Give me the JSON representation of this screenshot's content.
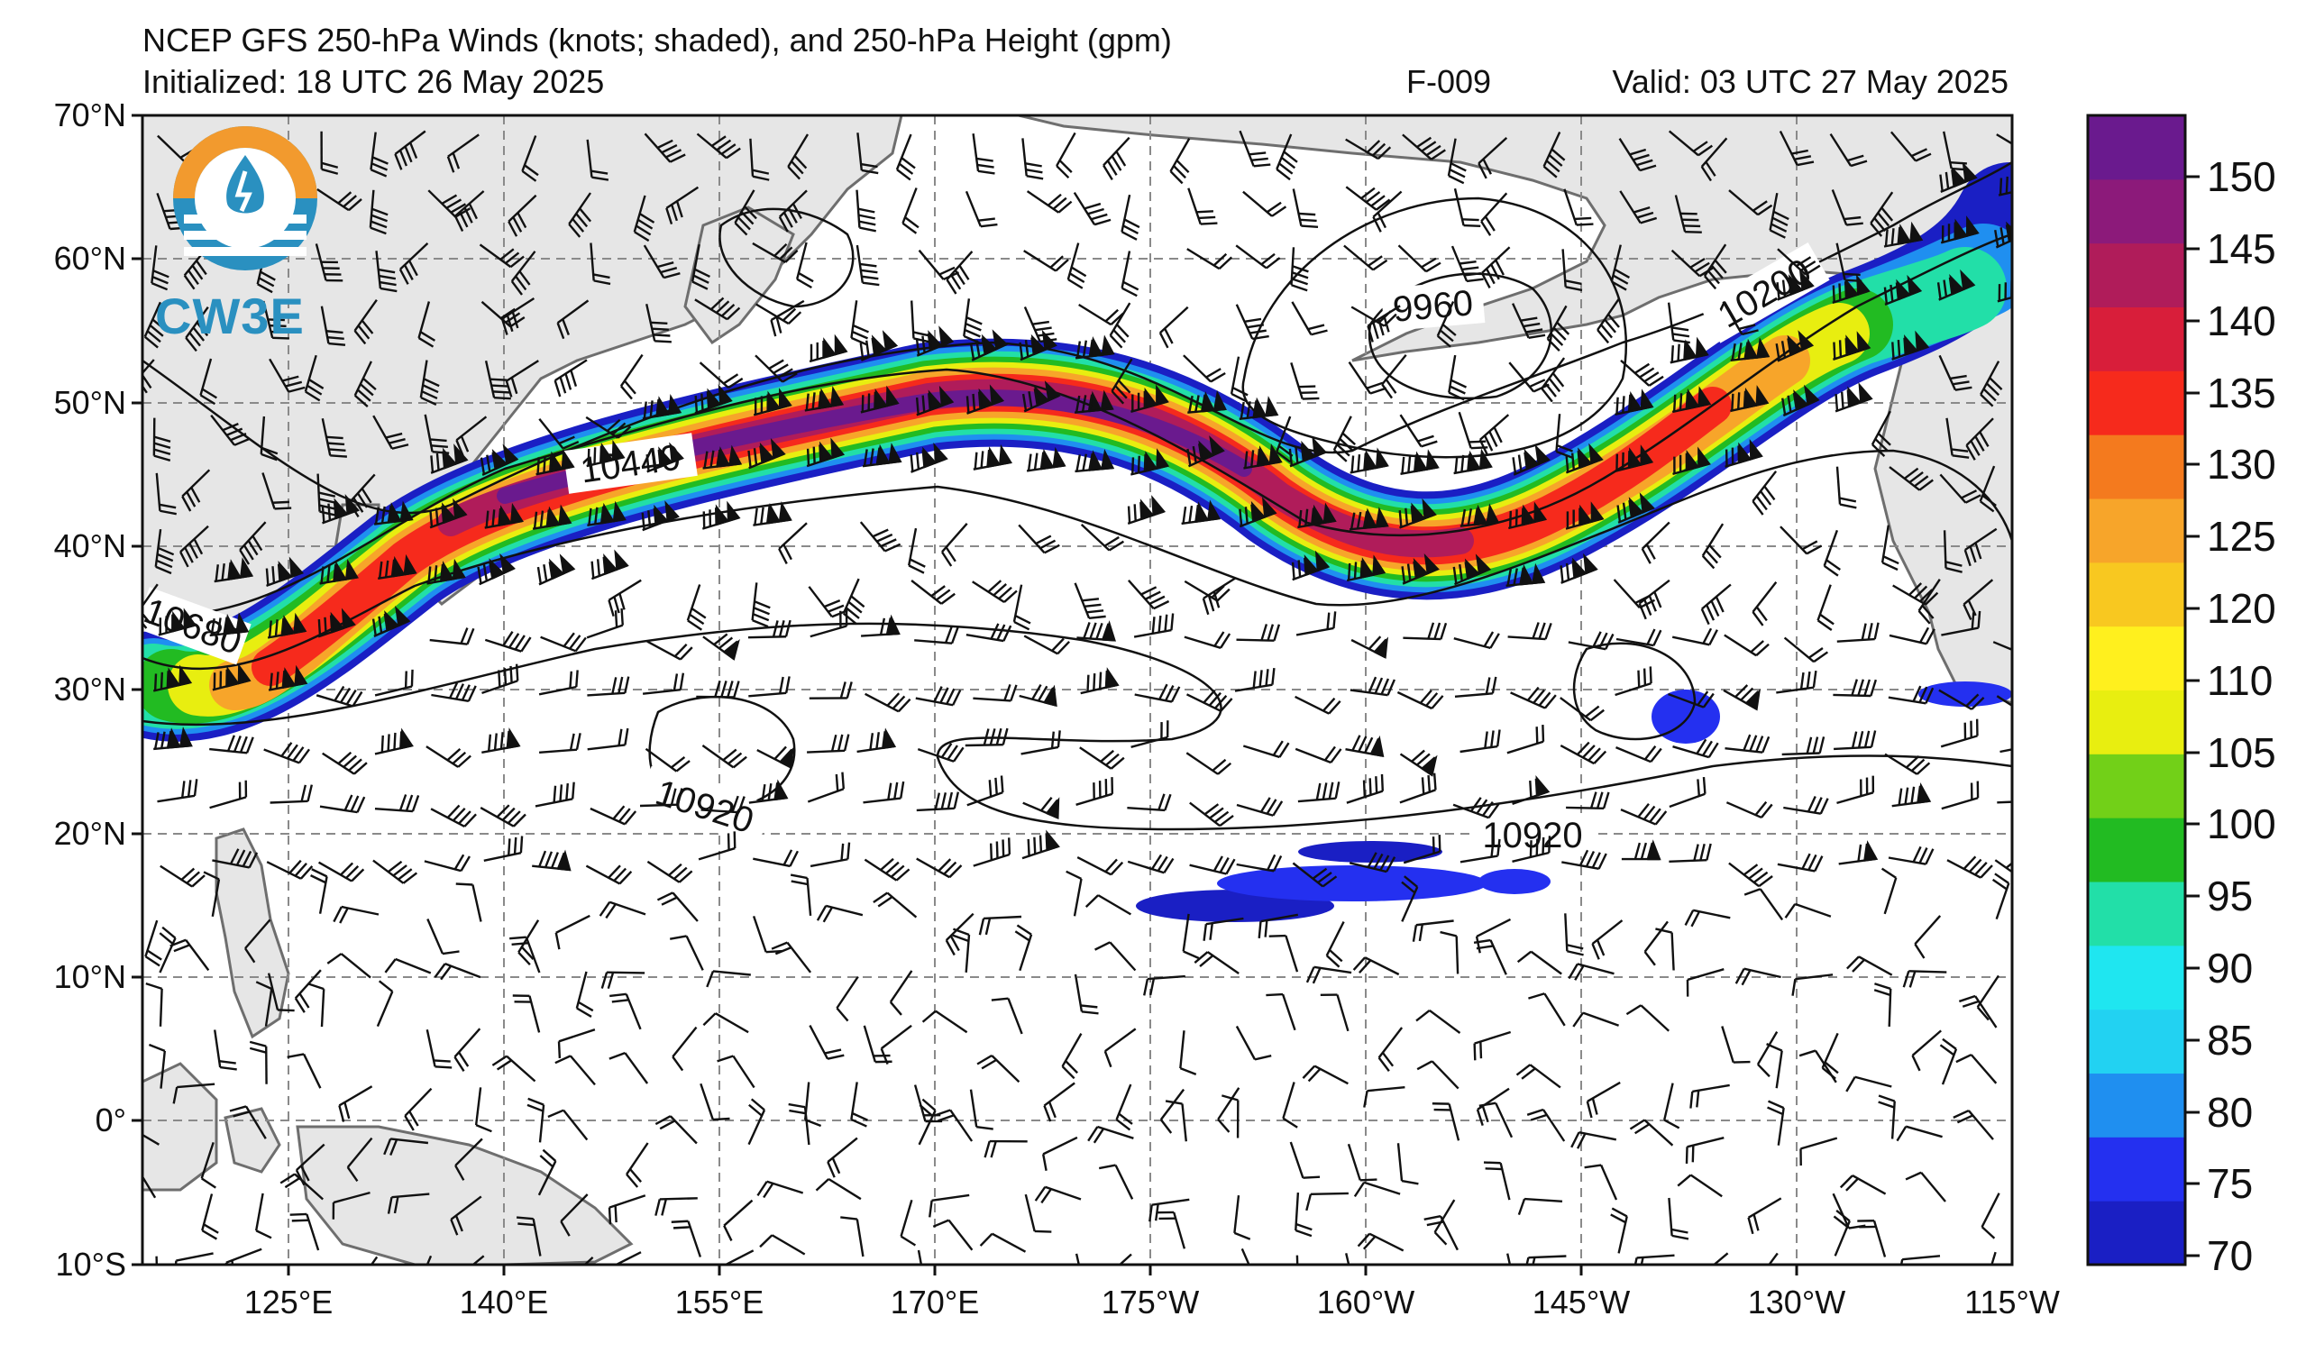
{
  "title": "NCEP GFS 250-hPa Winds (knots; shaded), and 250-hPa Height (gpm)",
  "initialized": "Initialized: 18 UTC 26 May 2025",
  "forecast_hour": "F-009",
  "valid": "Valid: 03 UTC 27 May 2025",
  "logo_text": "CW3E",
  "lat_labels": [
    "70°N",
    "60°N",
    "50°N",
    "40°N",
    "30°N",
    "20°N",
    "10°N",
    "0°",
    "10°S"
  ],
  "lon_labels": [
    "125°E",
    "140°E",
    "155°E",
    "170°E",
    "175°W",
    "160°W",
    "145°W",
    "130°W",
    "115°W"
  ],
  "contour_labels": [
    "10440",
    "10680",
    "10920",
    "10920",
    "9960",
    "10200"
  ],
  "colorbar": {
    "tick_labels": [
      "150",
      "145",
      "140",
      "135",
      "130",
      "125",
      "120",
      "110",
      "105",
      "100",
      "95",
      "90",
      "85",
      "80",
      "75",
      "70"
    ],
    "colors": [
      "#1a1fc4",
      "#2430f0",
      "#1f8ff0",
      "#22d2f2",
      "#1fe6f0",
      "#22dfa8",
      "#22bb22",
      "#72d018",
      "#e8ee10",
      "#fff01e",
      "#f8c820",
      "#f7a52a",
      "#f47a1e",
      "#f62a1c",
      "#d81e3a",
      "#b01c5a",
      "#8c1a7a",
      "#6a1a8e"
    ]
  },
  "colors": {
    "land": "#e6e6e6",
    "coast": "#6e6e6e",
    "grid": "#8a8a8a",
    "contour": "#111111"
  }
}
